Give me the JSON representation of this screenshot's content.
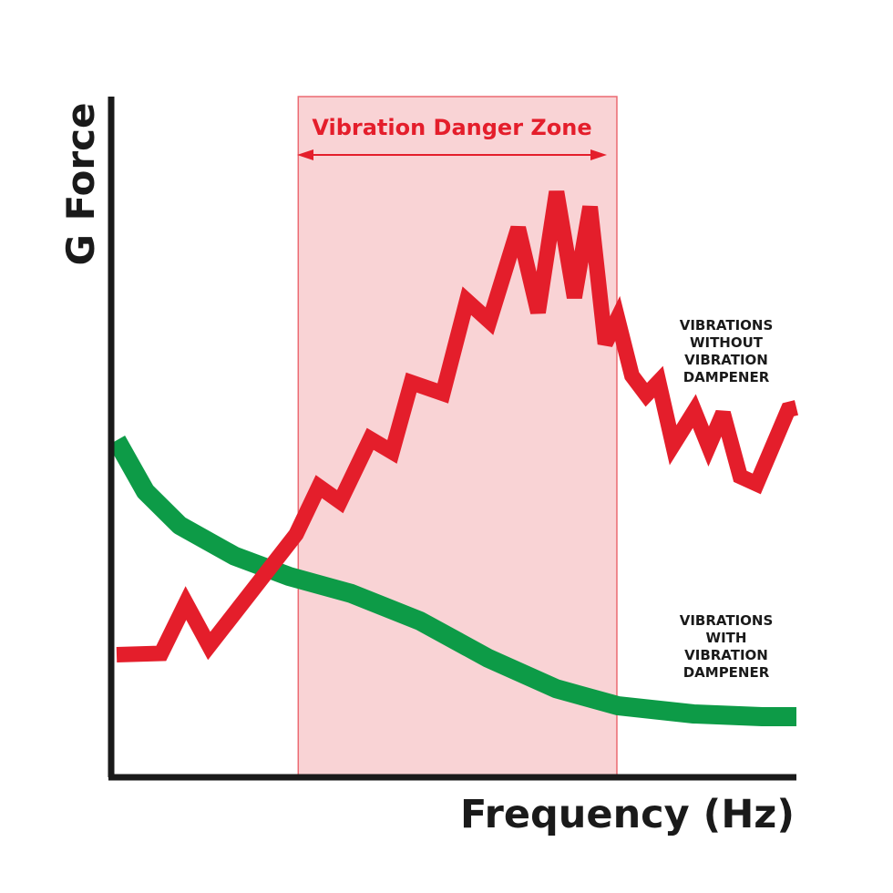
{
  "chart_data": {
    "type": "line",
    "xlabel": "Frequency (Hz)",
    "ylabel": "G Force",
    "xlim": [
      0,
      100
    ],
    "ylim": [
      0,
      100
    ],
    "grid": false,
    "danger_zone": {
      "label": "Vibration Danger Zone",
      "x_start": 27.3,
      "x_end": 73.8,
      "color": "#f9d3d5",
      "label_color": "#e41e2b"
    },
    "series": [
      {
        "name": "VIBRATIONS WITHOUT VIBRATION DAMPENER",
        "label_lines": [
          "VIBRATIONS",
          "WITHOUT",
          "VIBRATION",
          "DAMPENER"
        ],
        "color": "#e41e2b",
        "points": [
          [
            0.8,
            18
          ],
          [
            7.3,
            18.2
          ],
          [
            10.9,
            25.6
          ],
          [
            14.3,
            19.3
          ],
          [
            27.0,
            35.7
          ],
          [
            30.3,
            42.7
          ],
          [
            33.4,
            40.5
          ],
          [
            37.8,
            49.7
          ],
          [
            41.0,
            47.8
          ],
          [
            43.8,
            58.0
          ],
          [
            48.4,
            56.4
          ],
          [
            51.9,
            70.0
          ],
          [
            55.2,
            67.0
          ],
          [
            59.4,
            80.7
          ],
          [
            62.3,
            68.3
          ],
          [
            65.0,
            86.0
          ],
          [
            67.6,
            70.5
          ],
          [
            69.9,
            83.8
          ],
          [
            72.1,
            63.7
          ],
          [
            73.9,
            67.4
          ],
          [
            76.0,
            59.0
          ],
          [
            78.1,
            56.2
          ],
          [
            79.9,
            58.1
          ],
          [
            82.0,
            48.8
          ],
          [
            85.1,
            53.8
          ],
          [
            87.2,
            48.6
          ],
          [
            89.3,
            53.5
          ],
          [
            91.8,
            44.2
          ],
          [
            94.2,
            43.1
          ],
          [
            98.8,
            54.0
          ],
          [
            100,
            54.3
          ]
        ]
      },
      {
        "name": "VIBRATIONS WITH VIBRATION DAMPENER",
        "label_lines": [
          "VIBRATIONS",
          "WITH",
          "VIBRATION",
          "DAMPENER"
        ],
        "color": "#0d9b47",
        "points": [
          [
            0.8,
            49.5
          ],
          [
            5,
            42
          ],
          [
            10,
            37
          ],
          [
            18,
            32.5
          ],
          [
            26,
            29.5
          ],
          [
            35,
            27
          ],
          [
            45,
            23
          ],
          [
            55,
            17.5
          ],
          [
            65,
            13
          ],
          [
            74,
            10.5
          ],
          [
            85,
            9.3
          ],
          [
            95,
            8.9
          ],
          [
            100,
            8.9
          ]
        ]
      }
    ]
  }
}
